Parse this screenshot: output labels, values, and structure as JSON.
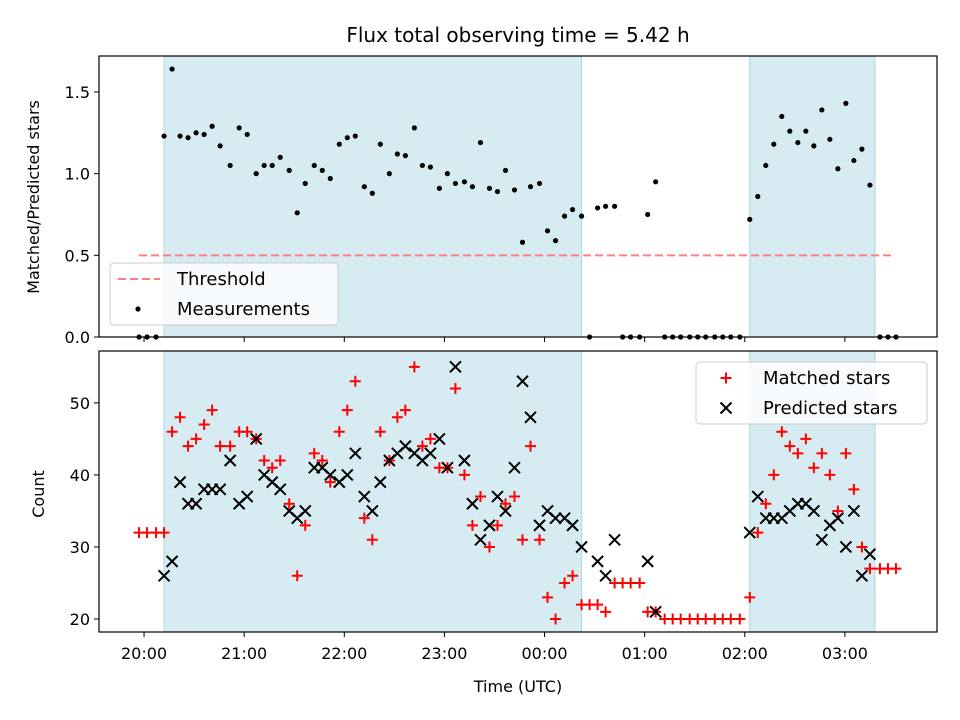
{
  "title": "Flux total observing time = 5.42 h",
  "xlabel": "Time (UTC)",
  "xtick_labels": [
    "20:00",
    "21:00",
    "22:00",
    "23:00",
    "00:00",
    "01:00",
    "02:00",
    "03:00"
  ],
  "colors": {
    "shade": "#add8e6",
    "threshold": "#ff7f7f",
    "measurements": "#000000",
    "matched": "#ff0000",
    "predicted": "#000000"
  },
  "chart_data": [
    {
      "type": "scatter",
      "name": "top",
      "ylabel": "Matched/Predicted stars",
      "xlim": [
        -0.45,
        7.92
      ],
      "ylim": [
        0,
        1.72
      ],
      "yticks": [
        0,
        0.5,
        1.0,
        1.5
      ],
      "ytick_labels": [
        "0.0",
        "0.5",
        "1.0",
        "1.5"
      ],
      "xticks": [
        0,
        1,
        2,
        3,
        4,
        5,
        6,
        7
      ],
      "shaded_intervals": [
        [
          0.2,
          4.37
        ],
        [
          6.05,
          7.3
        ]
      ],
      "threshold": {
        "label": "Threshold",
        "y": 0.5,
        "x_range": [
          -0.05,
          7.5
        ]
      },
      "legend": {
        "position": "lower-left",
        "entries": [
          "Threshold",
          "Measurements"
        ]
      },
      "series": [
        {
          "name": "Measurements",
          "marker": "dot",
          "points": [
            [
              -0.05,
              0
            ],
            [
              0.03,
              0
            ],
            [
              0.12,
              0
            ],
            [
              0.2,
              1.23
            ],
            [
              0.28,
              1.64
            ],
            [
              0.36,
              1.23
            ],
            [
              0.44,
              1.22
            ],
            [
              0.52,
              1.25
            ],
            [
              0.6,
              1.24
            ],
            [
              0.68,
              1.29
            ],
            [
              0.76,
              1.17
            ],
            [
              0.86,
              1.05
            ],
            [
              0.95,
              1.28
            ],
            [
              1.03,
              1.24
            ],
            [
              1.12,
              1.0
            ],
            [
              1.2,
              1.05
            ],
            [
              1.28,
              1.05
            ],
            [
              1.36,
              1.1
            ],
            [
              1.45,
              1.02
            ],
            [
              1.53,
              0.76
            ],
            [
              1.61,
              0.94
            ],
            [
              1.7,
              1.05
            ],
            [
              1.78,
              1.02
            ],
            [
              1.86,
              0.97
            ],
            [
              1.95,
              1.18
            ],
            [
              2.03,
              1.22
            ],
            [
              2.11,
              1.23
            ],
            [
              2.2,
              0.92
            ],
            [
              2.28,
              0.88
            ],
            [
              2.36,
              1.18
            ],
            [
              2.45,
              1.0
            ],
            [
              2.53,
              1.12
            ],
            [
              2.61,
              1.11
            ],
            [
              2.7,
              1.28
            ],
            [
              2.78,
              1.05
            ],
            [
              2.86,
              1.04
            ],
            [
              2.95,
              0.91
            ],
            [
              3.03,
              1.0
            ],
            [
              3.11,
              0.94
            ],
            [
              3.2,
              0.95
            ],
            [
              3.28,
              0.92
            ],
            [
              3.36,
              1.19
            ],
            [
              3.45,
              0.91
            ],
            [
              3.53,
              0.89
            ],
            [
              3.61,
              1.02
            ],
            [
              3.7,
              0.9
            ],
            [
              3.78,
              0.58
            ],
            [
              3.86,
              0.92
            ],
            [
              3.95,
              0.94
            ],
            [
              4.03,
              0.65
            ],
            [
              4.11,
              0.59
            ],
            [
              4.2,
              0.74
            ],
            [
              4.28,
              0.78
            ],
            [
              4.37,
              0.74
            ],
            [
              4.45,
              0
            ],
            [
              4.53,
              0.79
            ],
            [
              4.61,
              0.8
            ],
            [
              4.7,
              0.8
            ],
            [
              4.78,
              0
            ],
            [
              4.86,
              0
            ],
            [
              4.95,
              0
            ],
            [
              5.03,
              0.75
            ],
            [
              5.11,
              0.95
            ],
            [
              5.2,
              0
            ],
            [
              5.28,
              0
            ],
            [
              5.36,
              0
            ],
            [
              5.45,
              0
            ],
            [
              5.53,
              0
            ],
            [
              5.61,
              0
            ],
            [
              5.7,
              0
            ],
            [
              5.78,
              0
            ],
            [
              5.86,
              0
            ],
            [
              5.95,
              0
            ],
            [
              6.05,
              0.72
            ],
            [
              6.13,
              0.86
            ],
            [
              6.21,
              1.05
            ],
            [
              6.29,
              1.18
            ],
            [
              6.37,
              1.35
            ],
            [
              6.45,
              1.26
            ],
            [
              6.53,
              1.19
            ],
            [
              6.61,
              1.26
            ],
            [
              6.69,
              1.17
            ],
            [
              6.77,
              1.39
            ],
            [
              6.85,
              1.21
            ],
            [
              6.93,
              1.03
            ],
            [
              7.01,
              1.43
            ],
            [
              7.09,
              1.08
            ],
            [
              7.17,
              1.15
            ],
            [
              7.25,
              0.93
            ],
            [
              7.35,
              0
            ],
            [
              7.43,
              0
            ],
            [
              7.51,
              0
            ]
          ]
        }
      ]
    },
    {
      "type": "scatter",
      "name": "bottom",
      "ylabel": "Count",
      "xlim": [
        -0.45,
        7.92
      ],
      "ylim": [
        18.2,
        57.2
      ],
      "yticks": [
        20,
        30,
        40,
        50
      ],
      "ytick_labels": [
        "20",
        "30",
        "40",
        "50"
      ],
      "xticks": [
        0,
        1,
        2,
        3,
        4,
        5,
        6,
        7
      ],
      "shaded_intervals": [
        [
          0.2,
          4.37
        ],
        [
          6.05,
          7.3
        ]
      ],
      "legend": {
        "position": "upper-right",
        "entries": [
          "Matched stars",
          "Predicted stars"
        ]
      },
      "series": [
        {
          "name": "Matched stars",
          "marker": "plus",
          "points": [
            [
              -0.05,
              32
            ],
            [
              0.03,
              32
            ],
            [
              0.12,
              32
            ],
            [
              0.2,
              32
            ],
            [
              0.28,
              46
            ],
            [
              0.36,
              48
            ],
            [
              0.44,
              44
            ],
            [
              0.52,
              45
            ],
            [
              0.6,
              47
            ],
            [
              0.68,
              49
            ],
            [
              0.76,
              44
            ],
            [
              0.86,
              44
            ],
            [
              0.95,
              46
            ],
            [
              1.03,
              46
            ],
            [
              1.12,
              45
            ],
            [
              1.2,
              42
            ],
            [
              1.28,
              41
            ],
            [
              1.36,
              42
            ],
            [
              1.45,
              36
            ],
            [
              1.53,
              26
            ],
            [
              1.61,
              33
            ],
            [
              1.7,
              43
            ],
            [
              1.78,
              42
            ],
            [
              1.86,
              39
            ],
            [
              1.95,
              46
            ],
            [
              2.03,
              49
            ],
            [
              2.11,
              53
            ],
            [
              2.2,
              34
            ],
            [
              2.28,
              31
            ],
            [
              2.36,
              46
            ],
            [
              2.45,
              42
            ],
            [
              2.53,
              48
            ],
            [
              2.61,
              49
            ],
            [
              2.7,
              55
            ],
            [
              2.78,
              44
            ],
            [
              2.86,
              45
            ],
            [
              2.95,
              41
            ],
            [
              3.03,
              41
            ],
            [
              3.11,
              52
            ],
            [
              3.2,
              40
            ],
            [
              3.28,
              33
            ],
            [
              3.36,
              37
            ],
            [
              3.45,
              30
            ],
            [
              3.53,
              33
            ],
            [
              3.61,
              36
            ],
            [
              3.7,
              37
            ],
            [
              3.78,
              31
            ],
            [
              3.86,
              44
            ],
            [
              3.95,
              31
            ],
            [
              4.03,
              23
            ],
            [
              4.11,
              20
            ],
            [
              4.2,
              25
            ],
            [
              4.28,
              26
            ],
            [
              4.37,
              22
            ],
            [
              4.45,
              22
            ],
            [
              4.53,
              22
            ],
            [
              4.61,
              21
            ],
            [
              4.7,
              25
            ],
            [
              4.78,
              25
            ],
            [
              4.86,
              25
            ],
            [
              4.95,
              25
            ],
            [
              5.03,
              21
            ],
            [
              5.11,
              21
            ],
            [
              5.2,
              20
            ],
            [
              5.28,
              20
            ],
            [
              5.36,
              20
            ],
            [
              5.45,
              20
            ],
            [
              5.53,
              20
            ],
            [
              5.61,
              20
            ],
            [
              5.7,
              20
            ],
            [
              5.78,
              20
            ],
            [
              5.86,
              20
            ],
            [
              5.95,
              20
            ],
            [
              6.05,
              23
            ],
            [
              6.13,
              32
            ],
            [
              6.21,
              36
            ],
            [
              6.29,
              40
            ],
            [
              6.37,
              46
            ],
            [
              6.45,
              44
            ],
            [
              6.53,
              43
            ],
            [
              6.61,
              45
            ],
            [
              6.69,
              41
            ],
            [
              6.77,
              43
            ],
            [
              6.85,
              40
            ],
            [
              6.93,
              35
            ],
            [
              7.01,
              43
            ],
            [
              7.09,
              38
            ],
            [
              7.17,
              30
            ],
            [
              7.25,
              27
            ],
            [
              7.35,
              27
            ],
            [
              7.43,
              27
            ],
            [
              7.51,
              27
            ]
          ]
        },
        {
          "name": "Predicted stars",
          "marker": "x",
          "points": [
            [
              0.2,
              26
            ],
            [
              0.28,
              28
            ],
            [
              0.36,
              39
            ],
            [
              0.44,
              36
            ],
            [
              0.52,
              36
            ],
            [
              0.6,
              38
            ],
            [
              0.68,
              38
            ],
            [
              0.76,
              38
            ],
            [
              0.86,
              42
            ],
            [
              0.95,
              36
            ],
            [
              1.03,
              37
            ],
            [
              1.12,
              45
            ],
            [
              1.2,
              40
            ],
            [
              1.28,
              39
            ],
            [
              1.36,
              38
            ],
            [
              1.45,
              35
            ],
            [
              1.53,
              34
            ],
            [
              1.61,
              35
            ],
            [
              1.7,
              41
            ],
            [
              1.78,
              41
            ],
            [
              1.86,
              40
            ],
            [
              1.95,
              39
            ],
            [
              2.03,
              40
            ],
            [
              2.11,
              43
            ],
            [
              2.2,
              37
            ],
            [
              2.28,
              35
            ],
            [
              2.36,
              39
            ],
            [
              2.45,
              42
            ],
            [
              2.53,
              43
            ],
            [
              2.61,
              44
            ],
            [
              2.7,
              43
            ],
            [
              2.78,
              42
            ],
            [
              2.86,
              43
            ],
            [
              2.95,
              45
            ],
            [
              3.03,
              41
            ],
            [
              3.11,
              55
            ],
            [
              3.2,
              42
            ],
            [
              3.28,
              36
            ],
            [
              3.36,
              31
            ],
            [
              3.45,
              33
            ],
            [
              3.53,
              37
            ],
            [
              3.61,
              35
            ],
            [
              3.7,
              41
            ],
            [
              3.78,
              53
            ],
            [
              3.86,
              48
            ],
            [
              3.95,
              33
            ],
            [
              4.03,
              35
            ],
            [
              4.11,
              34
            ],
            [
              4.2,
              34
            ],
            [
              4.28,
              33
            ],
            [
              4.37,
              30
            ],
            [
              4.53,
              28
            ],
            [
              4.61,
              26
            ],
            [
              4.7,
              31
            ],
            [
              5.03,
              28
            ],
            [
              5.11,
              21
            ],
            [
              6.05,
              32
            ],
            [
              6.13,
              37
            ],
            [
              6.21,
              34
            ],
            [
              6.29,
              34
            ],
            [
              6.37,
              34
            ],
            [
              6.45,
              35
            ],
            [
              6.53,
              36
            ],
            [
              6.61,
              36
            ],
            [
              6.69,
              35
            ],
            [
              6.77,
              31
            ],
            [
              6.85,
              33
            ],
            [
              6.93,
              34
            ],
            [
              7.01,
              30
            ],
            [
              7.09,
              35
            ],
            [
              7.17,
              26
            ],
            [
              7.25,
              29
            ]
          ]
        }
      ]
    }
  ]
}
